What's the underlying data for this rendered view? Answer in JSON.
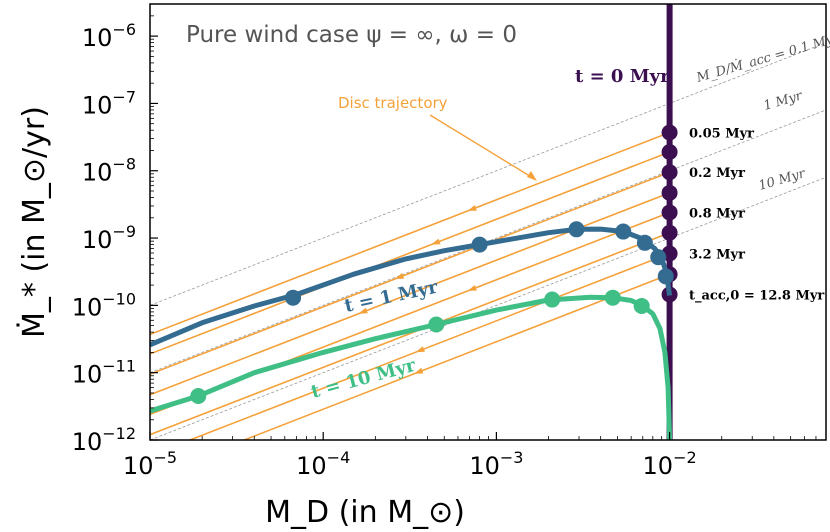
{
  "chart_data": {
    "type": "line",
    "title": "Pure wind case ψ = ∞, ω = 0",
    "xlabel": "M_D (in M_⊙)",
    "ylabel": "Ṁ_* (in M_⊙/yr)",
    "xscale": "log",
    "yscale": "log",
    "xlim": [
      1e-05,
      0.08
    ],
    "ylim": [
      1e-12,
      3e-06
    ],
    "x_ticks": [
      "10^-5",
      "10^-4",
      "10^-3",
      "10^-2"
    ],
    "y_ticks": [
      "10^-12",
      "10^-11",
      "10^-10",
      "10^-9",
      "10^-8",
      "10^-7",
      "10^-6"
    ],
    "reference_lines": [
      {
        "name": "M_D/Ṁ_acc = 0.1 Myr",
        "label": "M_D/Ṁ_acc = 0.1 Myr",
        "tau_myr": 0.1
      },
      {
        "name": "1 Myr",
        "label": "1 Myr",
        "tau_myr": 1
      },
      {
        "name": "10 Myr",
        "label": "10 Myr",
        "tau_myr": 10
      }
    ],
    "trajectory_label": "Disc trajectory",
    "trajectories": [
      {
        "md": [
          1e-05,
          0.01
        ],
        "mdot_start": 3.7e-11,
        "mdot_end": 3.7e-08
      },
      {
        "md": [
          1e-05,
          0.01
        ],
        "mdot_start": 1.9e-11,
        "mdot_end": 1.9e-08
      },
      {
        "md": [
          1e-05,
          0.01
        ],
        "mdot_start": 9.5e-12,
        "mdot_end": 9.5e-09
      },
      {
        "md": [
          1e-05,
          0.01
        ],
        "mdot_start": 4.7e-12,
        "mdot_end": 4.7e-09
      },
      {
        "md": [
          1e-05,
          0.01
        ],
        "mdot_start": 2.4e-12,
        "mdot_end": 2.4e-09
      },
      {
        "md": [
          1e-05,
          0.01
        ],
        "mdot_start": 1.2e-12,
        "mdot_end": 1.2e-09
      },
      {
        "md": [
          1.7e-05,
          0.01
        ],
        "mdot_start": 1e-12,
        "mdot_end": 5.9e-10
      },
      {
        "md": [
          3.5e-05,
          0.01
        ],
        "mdot_start": 1e-12,
        "mdot_end": 2.9e-10
      }
    ],
    "series": [
      {
        "name": "t = 0 Myr",
        "label": "t = 0 Myr",
        "color": "#3b0f50",
        "x": [
          0.01,
          0.01
        ],
        "y": [
          3e-06,
          1e-12
        ],
        "points": [
          {
            "x": 0.01,
            "y": 3.7e-08,
            "label": "0.05 Myr"
          },
          {
            "x": 0.01,
            "y": 1.9e-08
          },
          {
            "x": 0.01,
            "y": 9.5e-09,
            "label": "0.2 Myr"
          },
          {
            "x": 0.01,
            "y": 4.7e-09
          },
          {
            "x": 0.01,
            "y": 2.4e-09,
            "label": "0.8 Myr"
          },
          {
            "x": 0.01,
            "y": 1.2e-09
          },
          {
            "x": 0.01,
            "y": 5.9e-10,
            "label": "3.2 Myr"
          },
          {
            "x": 0.01,
            "y": 2.9e-10
          },
          {
            "x": 0.01,
            "y": 1.45e-10,
            "label": "t_acc,0 = 12.8 Myr"
          }
        ]
      },
      {
        "name": "t = 1 Myr",
        "label": "t = 1 Myr",
        "color": "#336b91",
        "x": [
          1e-05,
          2e-05,
          4e-05,
          7e-05,
          0.00015,
          0.0003,
          0.0005,
          0.0008,
          0.0012,
          0.002,
          0.0029,
          0.004,
          0.0054,
          0.0068,
          0.0082,
          0.009,
          0.0096,
          0.01
        ],
        "y": [
          2.6e-11,
          5.5e-11,
          9.8e-11,
          1.45e-10,
          2.9e-10,
          4.9e-10,
          6.5e-10,
          8e-10,
          9.6e-10,
          1.2e-09,
          1.35e-09,
          1.36e-09,
          1.25e-09,
          1e-09,
          7e-10,
          5e-10,
          3e-10,
          1.4e-10
        ],
        "points": [
          {
            "x": 6.7e-05,
            "y": 1.3e-10
          },
          {
            "x": 0.0008,
            "y": 8e-10
          },
          {
            "x": 0.0029,
            "y": 1.35e-09
          },
          {
            "x": 0.0054,
            "y": 1.25e-09
          },
          {
            "x": 0.0072,
            "y": 8.5e-10
          },
          {
            "x": 0.0086,
            "y": 5.2e-10
          },
          {
            "x": 0.0095,
            "y": 2.7e-10
          }
        ]
      },
      {
        "name": "t = 10 Myr",
        "label": "t = 10 Myr",
        "color": "#3fbf86",
        "x": [
          1e-05,
          1.9e-05,
          4e-05,
          0.0001,
          0.0002,
          0.00045,
          0.001,
          0.002,
          0.0035,
          0.0047,
          0.006,
          0.007,
          0.008,
          0.0088,
          0.0094,
          0.0098,
          0.01
        ],
        "y": [
          2.7e-12,
          4.5e-12,
          1e-11,
          2e-11,
          3.2e-11,
          5.2e-11,
          8.5e-11,
          1.2e-10,
          1.32e-10,
          1.3e-10,
          1.18e-10,
          9.8e-11,
          7.5e-11,
          4.5e-11,
          2e-11,
          6e-12,
          1e-12
        ],
        "points": [
          {
            "x": 1.9e-05,
            "y": 4.5e-12
          },
          {
            "x": 0.00045,
            "y": 5.2e-11
          },
          {
            "x": 0.0021,
            "y": 1.22e-10
          },
          {
            "x": 0.0047,
            "y": 1.3e-10
          },
          {
            "x": 0.0069,
            "y": 9.8e-11
          }
        ]
      }
    ]
  }
}
